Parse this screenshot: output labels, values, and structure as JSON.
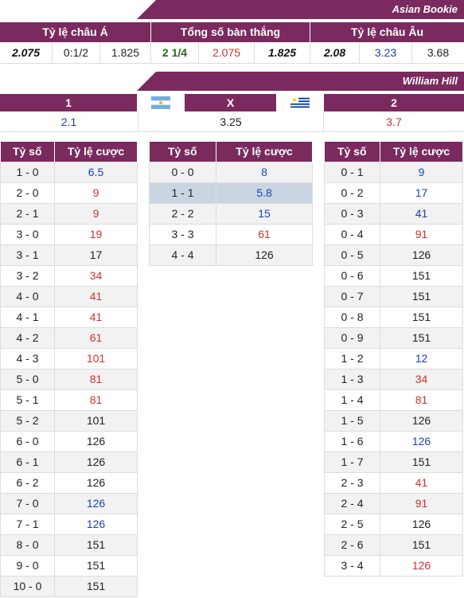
{
  "asian_bookie": {
    "title": "Asian Bookie",
    "headers": [
      "Tỷ lệ châu Á",
      "Tổng số bàn thắng",
      "Tỷ lệ châu Âu"
    ],
    "values": [
      "2.075",
      "0:1/2",
      "1.825",
      "2 1/4",
      "2.075",
      "1.825",
      "2.08",
      "3.23",
      "3.68"
    ]
  },
  "william_hill": {
    "title": "William Hill",
    "labels": [
      "1",
      "X",
      "2"
    ],
    "values": [
      "2.1",
      "3.25",
      "3.7"
    ],
    "flags": [
      "argentina-flag-icon",
      "uruguay-flag-icon"
    ]
  },
  "score_tables": {
    "col_score": "Tỷ số",
    "col_odds": "Tỷ lệ cược",
    "home": [
      {
        "score": "1 - 0",
        "odds": "6.5",
        "color": "blue"
      },
      {
        "score": "2 - 0",
        "odds": "9",
        "color": "red"
      },
      {
        "score": "2 - 1",
        "odds": "9",
        "color": "red"
      },
      {
        "score": "3 - 0",
        "odds": "19",
        "color": "red"
      },
      {
        "score": "3 - 1",
        "odds": "17",
        "color": "black"
      },
      {
        "score": "3 - 2",
        "odds": "34",
        "color": "red"
      },
      {
        "score": "4 - 0",
        "odds": "41",
        "color": "red"
      },
      {
        "score": "4 - 1",
        "odds": "41",
        "color": "red"
      },
      {
        "score": "4 - 2",
        "odds": "61",
        "color": "red"
      },
      {
        "score": "4 - 3",
        "odds": "101",
        "color": "red"
      },
      {
        "score": "5 - 0",
        "odds": "81",
        "color": "red"
      },
      {
        "score": "5 - 1",
        "odds": "81",
        "color": "red"
      },
      {
        "score": "5 - 2",
        "odds": "101",
        "color": "black"
      },
      {
        "score": "6 - 0",
        "odds": "126",
        "color": "black"
      },
      {
        "score": "6 - 1",
        "odds": "126",
        "color": "black"
      },
      {
        "score": "6 - 2",
        "odds": "126",
        "color": "black"
      },
      {
        "score": "7 - 0",
        "odds": "126",
        "color": "blue"
      },
      {
        "score": "7 - 1",
        "odds": "126",
        "color": "blue"
      },
      {
        "score": "8 - 0",
        "odds": "151",
        "color": "black"
      },
      {
        "score": "9 - 0",
        "odds": "151",
        "color": "black"
      },
      {
        "score": "10 - 0",
        "odds": "151",
        "color": "black"
      }
    ],
    "draw": [
      {
        "score": "0 - 0",
        "odds": "8",
        "color": "blue"
      },
      {
        "score": "1 - 1",
        "odds": "5.8",
        "color": "blue",
        "highlight": true
      },
      {
        "score": "2 - 2",
        "odds": "15",
        "color": "blue"
      },
      {
        "score": "3 - 3",
        "odds": "61",
        "color": "red"
      },
      {
        "score": "4 - 4",
        "odds": "126",
        "color": "black"
      }
    ],
    "away": [
      {
        "score": "0 - 1",
        "odds": "9",
        "color": "blue"
      },
      {
        "score": "0 - 2",
        "odds": "17",
        "color": "blue"
      },
      {
        "score": "0 - 3",
        "odds": "41",
        "color": "blue"
      },
      {
        "score": "0 - 4",
        "odds": "91",
        "color": "red"
      },
      {
        "score": "0 - 5",
        "odds": "126",
        "color": "black"
      },
      {
        "score": "0 - 6",
        "odds": "151",
        "color": "black"
      },
      {
        "score": "0 - 7",
        "odds": "151",
        "color": "black"
      },
      {
        "score": "0 - 8",
        "odds": "151",
        "color": "black"
      },
      {
        "score": "0 - 9",
        "odds": "151",
        "color": "black"
      },
      {
        "score": "1 - 2",
        "odds": "12",
        "color": "blue"
      },
      {
        "score": "1 - 3",
        "odds": "34",
        "color": "red"
      },
      {
        "score": "1 - 4",
        "odds": "81",
        "color": "red"
      },
      {
        "score": "1 - 5",
        "odds": "126",
        "color": "black"
      },
      {
        "score": "1 - 6",
        "odds": "126",
        "color": "blue"
      },
      {
        "score": "1 - 7",
        "odds": "151",
        "color": "black"
      },
      {
        "score": "2 - 3",
        "odds": "41",
        "color": "red"
      },
      {
        "score": "2 - 4",
        "odds": "91",
        "color": "red"
      },
      {
        "score": "2 - 5",
        "odds": "126",
        "color": "black"
      },
      {
        "score": "2 - 6",
        "odds": "151",
        "color": "black"
      },
      {
        "score": "3 - 4",
        "odds": "126",
        "color": "red"
      }
    ]
  }
}
